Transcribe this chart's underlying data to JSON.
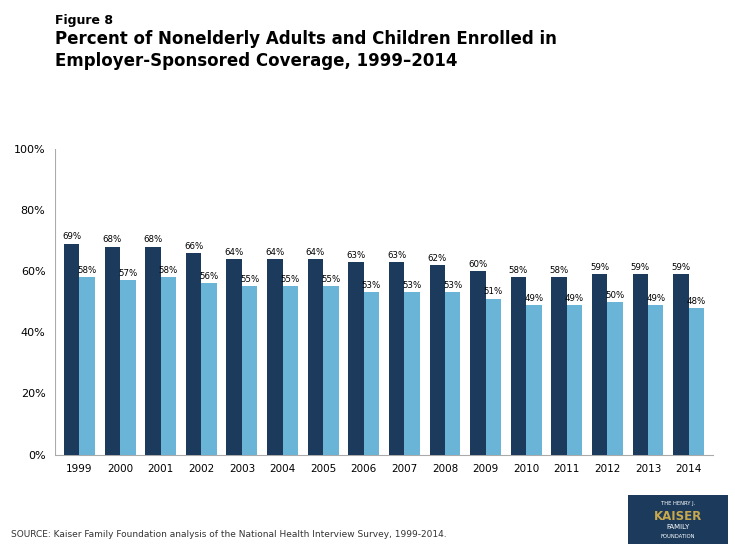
{
  "years": [
    1999,
    2000,
    2001,
    2002,
    2003,
    2004,
    2005,
    2006,
    2007,
    2008,
    2009,
    2010,
    2011,
    2012,
    2013,
    2014
  ],
  "adults": [
    69,
    68,
    68,
    66,
    64,
    64,
    64,
    63,
    63,
    62,
    60,
    58,
    58,
    59,
    59,
    59
  ],
  "children": [
    58,
    57,
    58,
    56,
    55,
    55,
    55,
    53,
    53,
    53,
    51,
    49,
    49,
    50,
    49,
    48
  ],
  "color_adults": "#1b3a5c",
  "color_children": "#6ab4d8",
  "title_line1": "Figure 8",
  "title_line2": "Percent of Nonelderly Adults and Children Enrolled in",
  "title_line3": "Employer-Sponsored Coverage, 1999–2014",
  "ylim": [
    0,
    100
  ],
  "yticks": [
    0,
    20,
    40,
    60,
    80,
    100
  ],
  "source_text": "SOURCE: Kaiser Family Foundation analysis of the National Health Interview Survey, 1999-2014.",
  "bar_width": 0.38,
  "background_color": "#ffffff",
  "logo_bg": "#1b3a5c",
  "logo_gold": "#c8a84b"
}
